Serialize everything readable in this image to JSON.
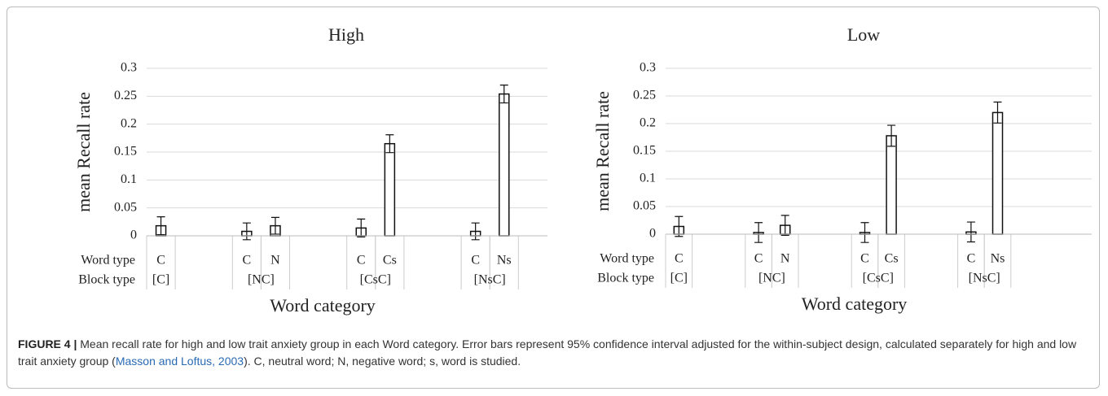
{
  "chart_data": [
    {
      "type": "bar",
      "title": "High",
      "ylabel": "mean Recall rate",
      "xlabel": "Word category",
      "row_labels": [
        "Word type",
        "Block type"
      ],
      "groups": [
        {
          "name": "[C]",
          "categories": [
            "C"
          ],
          "values": [
            0.018
          ],
          "errors": [
            0.016
          ]
        },
        {
          "name": "[NC]",
          "categories": [
            "C",
            "N"
          ],
          "values": [
            0.008,
            0.018
          ],
          "errors": [
            0.015,
            0.015
          ]
        },
        {
          "name": "[CsC]",
          "categories": [
            "C",
            "Cs"
          ],
          "values": [
            0.014,
            0.165
          ],
          "errors": [
            0.016,
            0.016
          ]
        },
        {
          "name": "[NsC]",
          "categories": [
            "C",
            "Ns"
          ],
          "values": [
            0.008,
            0.254
          ],
          "errors": [
            0.015,
            0.016
          ]
        }
      ],
      "ylim": [
        0,
        0.3
      ],
      "yticks": [
        0,
        0.05,
        0.1,
        0.15,
        0.2,
        0.25,
        0.3
      ],
      "grid": true,
      "color": "#ffffff"
    },
    {
      "type": "bar",
      "title": "Low",
      "ylabel": "mean Recall rate",
      "xlabel": "Word category",
      "row_labels": [
        "Word type",
        "Block type"
      ],
      "groups": [
        {
          "name": "[C]",
          "categories": [
            "C"
          ],
          "values": [
            0.014
          ],
          "errors": [
            0.018
          ]
        },
        {
          "name": "[NC]",
          "categories": [
            "C",
            "N"
          ],
          "values": [
            0.003,
            0.016
          ],
          "errors": [
            0.018,
            0.018
          ]
        },
        {
          "name": "[CsC]",
          "categories": [
            "C",
            "Cs"
          ],
          "values": [
            0.003,
            0.178
          ],
          "errors": [
            0.018,
            0.019
          ]
        },
        {
          "name": "[NsC]",
          "categories": [
            "C",
            "Ns"
          ],
          "values": [
            0.004,
            0.22
          ],
          "errors": [
            0.018,
            0.019
          ]
        }
      ],
      "ylim": [
        0,
        0.3
      ],
      "yticks": [
        0,
        0.05,
        0.1,
        0.15,
        0.2,
        0.25,
        0.3
      ],
      "grid": true,
      "color": "#ffffff"
    }
  ],
  "caption": {
    "label": "FIGURE 4 |",
    "text": " Mean recall rate for high and low trait anxiety group in each Word category. Error bars represent 95% confidence interval adjusted for the within-subject design, calculated separately for high and low trait anxiety group (",
    "citation": "Masson and Loftus, 2003",
    "text_end": "). C, neutral word; N, negative word; s, word is studied."
  }
}
